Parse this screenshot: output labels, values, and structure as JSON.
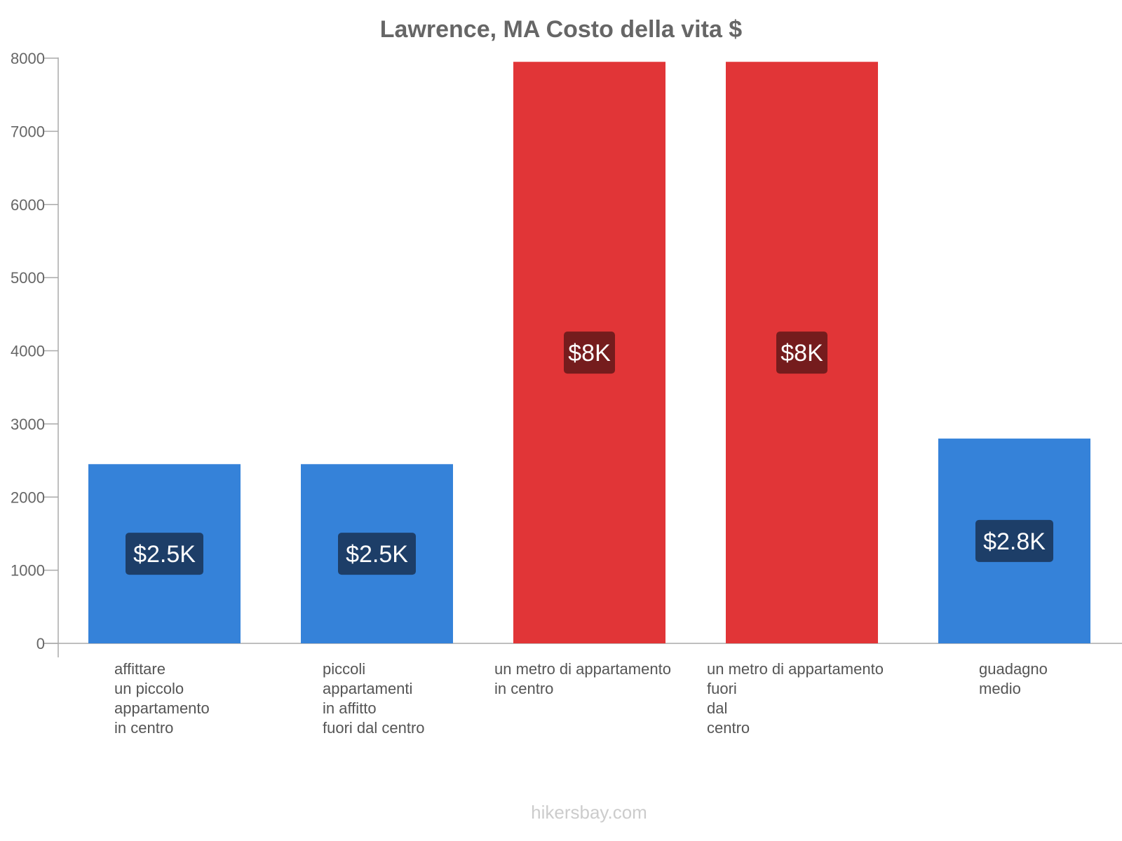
{
  "chart_data": {
    "type": "bar",
    "title": "Lawrence, MA Costo della vita $",
    "categories": [
      [
        "affittare",
        "un piccolo",
        "appartamento",
        "in centro"
      ],
      [
        "piccoli",
        "appartamenti",
        "in affitto",
        "fuori dal centro"
      ],
      [
        "un metro di appartamento",
        "in centro"
      ],
      [
        "un metro di appartamento",
        "fuori",
        "dal",
        "centro"
      ],
      [
        "guadagno",
        "medio"
      ]
    ],
    "values": [
      2450,
      2450,
      7950,
      7950,
      2800
    ],
    "data_labels": [
      "$2.5K",
      "$2.5K",
      "$8K",
      "$8K",
      "$2.8K"
    ],
    "bar_colors": [
      "#3582d9",
      "#3582d9",
      "#e13537",
      "#e13537",
      "#3582d9"
    ],
    "label_colors": [
      "#1d3e68",
      "#1d3e68",
      "#751c1d",
      "#751c1d",
      "#1d3e68"
    ],
    "ylim": [
      0,
      8000
    ],
    "yticks": [
      0,
      1000,
      2000,
      3000,
      4000,
      5000,
      6000,
      7000,
      8000
    ],
    "xlabel": "",
    "ylabel": "",
    "grid": false,
    "legend": "none"
  },
  "footer": "hikersbay.com"
}
